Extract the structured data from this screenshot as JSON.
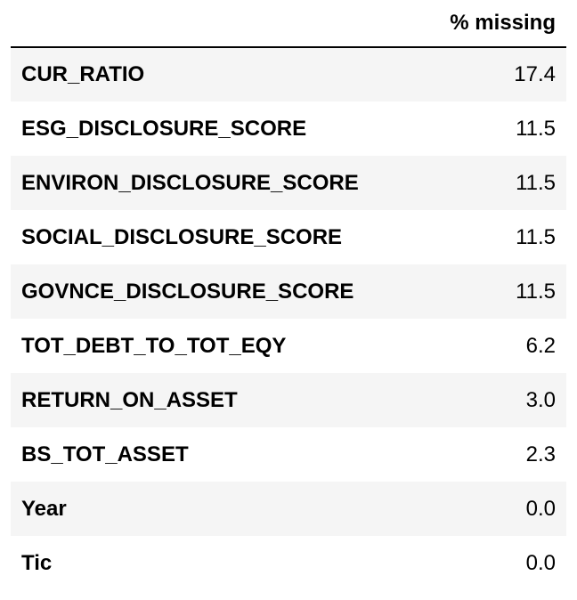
{
  "table": {
    "index_header": "",
    "column_header": "% missing",
    "rows": [
      {
        "label": "CUR_RATIO",
        "value": "17.4"
      },
      {
        "label": "ESG_DISCLOSURE_SCORE",
        "value": "11.5"
      },
      {
        "label": "ENVIRON_DISCLOSURE_SCORE",
        "value": "11.5"
      },
      {
        "label": "SOCIAL_DISCLOSURE_SCORE",
        "value": "11.5"
      },
      {
        "label": "GOVNCE_DISCLOSURE_SCORE",
        "value": "11.5"
      },
      {
        "label": "TOT_DEBT_TO_TOT_EQY",
        "value": "6.2"
      },
      {
        "label": "RETURN_ON_ASSET",
        "value": "3.0"
      },
      {
        "label": "BS_TOT_ASSET",
        "value": "2.3"
      },
      {
        "label": "Year",
        "value": "0.0"
      },
      {
        "label": "Tic",
        "value": "0.0"
      }
    ]
  },
  "colors": {
    "stripe": "#f5f5f5",
    "background": "#ffffff",
    "text": "#000000",
    "header_rule": "#000000"
  }
}
